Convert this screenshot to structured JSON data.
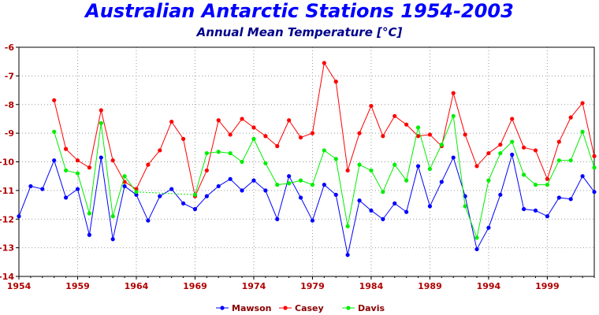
{
  "chart_data": {
    "type": "line",
    "title": "Australian Antarctic Stations 1954-2003",
    "subtitle": "Annual Mean Temperature [°C]",
    "xlim": [
      1954,
      2003
    ],
    "ylim": [
      -14,
      -6
    ],
    "x_ticks": [
      1954,
      1959,
      1964,
      1969,
      1974,
      1979,
      1984,
      1989,
      1994,
      1999
    ],
    "y_ticks": [
      -6,
      -7,
      -8,
      -9,
      -10,
      -11,
      -12,
      -13,
      -14
    ],
    "grid": true,
    "legend_position": "bottom",
    "series": [
      {
        "name": "Mawson",
        "color": "#0000ff",
        "points": [
          [
            1954,
            -11.9
          ],
          [
            1955,
            -10.85
          ],
          [
            1956,
            -10.95
          ],
          [
            1957,
            -9.95
          ],
          [
            1958,
            -11.25
          ],
          [
            1959,
            -10.95
          ],
          [
            1960,
            -12.55
          ],
          [
            1961,
            -9.85
          ],
          [
            1962,
            -12.7
          ],
          [
            1963,
            -10.85
          ],
          [
            1964,
            -11.15
          ],
          [
            1965,
            -12.05
          ],
          [
            1966,
            -11.2
          ],
          [
            1967,
            -10.95
          ],
          [
            1968,
            -11.45
          ],
          [
            1969,
            -11.65
          ],
          [
            1970,
            -11.2
          ],
          [
            1971,
            -10.85
          ],
          [
            1972,
            -10.6
          ],
          [
            1973,
            -11.0
          ],
          [
            1974,
            -10.65
          ],
          [
            1975,
            -11.0
          ],
          [
            1976,
            -12.0
          ],
          [
            1977,
            -10.5
          ],
          [
            1978,
            -11.25
          ],
          [
            1979,
            -12.05
          ],
          [
            1980,
            -10.8
          ],
          [
            1981,
            -11.15
          ],
          [
            1982,
            -13.25
          ],
          [
            1983,
            -11.35
          ],
          [
            1984,
            -11.7
          ],
          [
            1985,
            -12.0
          ],
          [
            1986,
            -11.45
          ],
          [
            1987,
            -11.75
          ],
          [
            1988,
            -10.15
          ],
          [
            1989,
            -11.55
          ],
          [
            1990,
            -10.7
          ],
          [
            1991,
            -9.85
          ],
          [
            1992,
            -11.2
          ],
          [
            1993,
            -13.05
          ],
          [
            1994,
            -12.3
          ],
          [
            1995,
            -11.15
          ],
          [
            1996,
            -9.75
          ],
          [
            1997,
            -11.65
          ],
          [
            1998,
            -11.7
          ],
          [
            1999,
            -11.9
          ],
          [
            2000,
            -11.25
          ],
          [
            2001,
            -11.3
          ],
          [
            2002,
            -10.5
          ],
          [
            2003,
            -11.05
          ]
        ]
      },
      {
        "name": "Casey",
        "color": "#ff0000",
        "points": [
          [
            1957,
            -7.85
          ],
          [
            1958,
            -9.55
          ],
          [
            1959,
            -9.95
          ],
          [
            1960,
            -10.2
          ],
          [
            1961,
            -8.2
          ],
          [
            1962,
            -9.95
          ],
          [
            1963,
            -10.7
          ],
          [
            1964,
            -10.95
          ],
          [
            1965,
            -10.1
          ],
          [
            1966,
            -9.6
          ],
          [
            1967,
            -8.6
          ],
          [
            1968,
            -9.2
          ],
          [
            1969,
            -11.2
          ],
          [
            1970,
            -10.3
          ],
          [
            1971,
            -8.55
          ],
          [
            1972,
            -9.05
          ],
          [
            1973,
            -8.5
          ],
          [
            1974,
            -8.8
          ],
          [
            1975,
            -9.1
          ],
          [
            1976,
            -9.45
          ],
          [
            1977,
            -8.55
          ],
          [
            1978,
            -9.15
          ],
          [
            1979,
            -9.0
          ],
          [
            1980,
            -6.55
          ],
          [
            1981,
            -7.2
          ],
          [
            1982,
            -10.3
          ],
          [
            1983,
            -9.0
          ],
          [
            1984,
            -8.05
          ],
          [
            1985,
            -9.1
          ],
          [
            1986,
            -8.4
          ],
          [
            1987,
            -8.7
          ],
          [
            1988,
            -9.1
          ],
          [
            1989,
            -9.05
          ],
          [
            1990,
            -9.45
          ],
          [
            1991,
            -7.6
          ],
          [
            1992,
            -9.05
          ],
          [
            1993,
            -10.15
          ],
          [
            1994,
            -9.7
          ],
          [
            1995,
            -9.4
          ],
          [
            1996,
            -8.5
          ],
          [
            1997,
            -9.5
          ],
          [
            1998,
            -9.6
          ],
          [
            1999,
            -10.6
          ],
          [
            2000,
            -9.3
          ],
          [
            2001,
            -8.45
          ],
          [
            2002,
            -7.95
          ],
          [
            2003,
            -9.8
          ]
        ]
      },
      {
        "name": "Davis",
        "color": "#00ee00",
        "points": [
          [
            1957,
            -8.95
          ],
          [
            1958,
            -10.3
          ],
          [
            1959,
            -10.4
          ],
          [
            1960,
            -11.8
          ],
          [
            1961,
            -8.65
          ],
          [
            1962,
            -11.9
          ],
          [
            1963,
            -10.5
          ],
          [
            1964,
            -11.05
          ],
          [
            1969,
            -11.15
          ],
          [
            1970,
            -9.7
          ],
          [
            1971,
            -9.65
          ],
          [
            1972,
            -9.7
          ],
          [
            1973,
            -10.0
          ],
          [
            1974,
            -9.2
          ],
          [
            1975,
            -10.05
          ],
          [
            1976,
            -10.8
          ],
          [
            1977,
            -10.75
          ],
          [
            1978,
            -10.65
          ],
          [
            1979,
            -10.8
          ],
          [
            1980,
            -9.6
          ],
          [
            1981,
            -9.9
          ],
          [
            1982,
            -12.25
          ],
          [
            1983,
            -10.1
          ],
          [
            1984,
            -10.3
          ],
          [
            1985,
            -11.05
          ],
          [
            1986,
            -10.1
          ],
          [
            1987,
            -10.65
          ],
          [
            1988,
            -8.8
          ],
          [
            1989,
            -10.25
          ],
          [
            1990,
            -9.4
          ],
          [
            1991,
            -8.4
          ],
          [
            1992,
            -11.55
          ],
          [
            1993,
            -12.65
          ],
          [
            1994,
            -10.65
          ],
          [
            1995,
            -9.7
          ],
          [
            1996,
            -9.3
          ],
          [
            1997,
            -10.45
          ],
          [
            1998,
            -10.8
          ],
          [
            1999,
            -10.8
          ],
          [
            2000,
            -9.95
          ],
          [
            2001,
            -9.95
          ],
          [
            2002,
            -8.95
          ],
          [
            2003,
            -10.2
          ]
        ]
      }
    ]
  }
}
